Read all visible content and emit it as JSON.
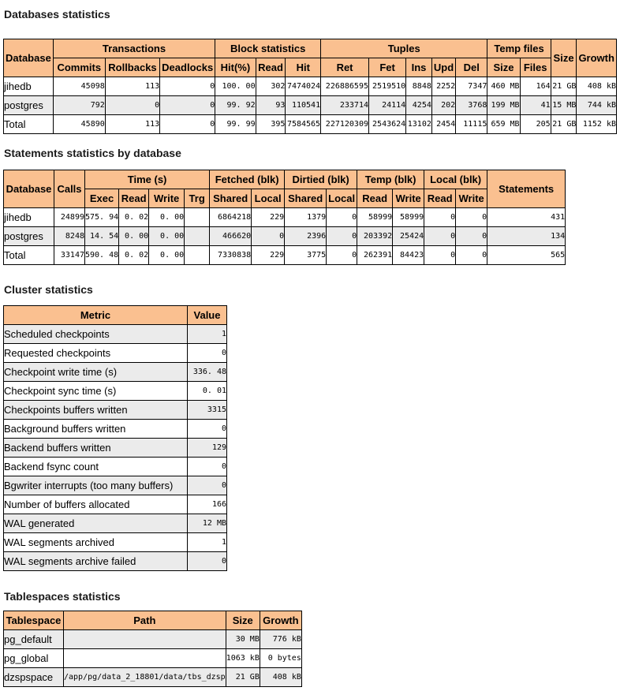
{
  "colors": {
    "header_bg": "#FAC090",
    "row_alt_bg": "#EBEBEB",
    "border": "#000000"
  },
  "sections": {
    "databases": {
      "title": "Databases statistics",
      "header": {
        "database": "Database",
        "transactions": "Transactions",
        "commits": "Commits",
        "rollbacks": "Rollbacks",
        "deadlocks": "Deadlocks",
        "block_statistics": "Block statistics",
        "hit_pct": "Hit(%)",
        "read": "Read",
        "hit": "Hit",
        "tuples": "Tuples",
        "ret": "Ret",
        "fet": "Fet",
        "ins": "Ins",
        "upd": "Upd",
        "del": "Del",
        "temp_files": "Temp files",
        "temp_size": "Size",
        "temp_count": "Files",
        "size": "Size",
        "growth": "Growth"
      },
      "rows": [
        [
          "jihedb",
          "45098",
          "113",
          "0",
          "100. 00",
          "302",
          "7474024",
          "226886595",
          "2519510",
          "8848",
          "2252",
          "7347",
          "460 MB",
          "164",
          "21 GB",
          "408 kB"
        ],
        [
          "postgres",
          "792",
          "0",
          "0",
          "99. 92",
          "93",
          "110541",
          "233714",
          "24114",
          "4254",
          "202",
          "3768",
          "199 MB",
          "41",
          "15 MB",
          "744 kB"
        ],
        [
          "Total",
          "45890",
          "113",
          "0",
          "99. 99",
          "395",
          "7584565",
          "227120309",
          "2543624",
          "13102",
          "2454",
          "11115",
          "659 MB",
          "205",
          "21 GB",
          "1152 kB"
        ]
      ]
    },
    "statements": {
      "title": "Statements statistics by database",
      "header": {
        "database": "Database",
        "calls": "Calls",
        "time_s": "Time (s)",
        "exec": "Exec",
        "read": "Read",
        "write": "Write",
        "trg": "Trg",
        "fetched_blk": "Fetched (blk)",
        "fetched_shared": "Shared",
        "fetched_local": "Local",
        "dirtied_blk": "Dirtied (blk)",
        "dirtied_shared": "Shared",
        "dirtied_local": "Local",
        "temp_blk": "Temp (blk)",
        "temp_read": "Read",
        "temp_write": "Write",
        "local_blk": "Local (blk)",
        "local_read": "Read",
        "local_write": "Write",
        "statements": "Statements"
      },
      "rows": [
        [
          "jihedb",
          "24899",
          "575. 94",
          "0. 02",
          "0. 00",
          "",
          "6864218",
          "229",
          "1379",
          "0",
          "58999",
          "58999",
          "0",
          "0",
          "431"
        ],
        [
          "postgres",
          "8248",
          "14. 54",
          "0. 00",
          "0. 00",
          "",
          "466620",
          "0",
          "2396",
          "0",
          "203392",
          "25424",
          "0",
          "0",
          "134"
        ],
        [
          "Total",
          "33147",
          "590. 48",
          "0. 02",
          "0. 00",
          "",
          "7330838",
          "229",
          "3775",
          "0",
          "262391",
          "84423",
          "0",
          "0",
          "565"
        ]
      ]
    },
    "cluster": {
      "title": "Cluster statistics",
      "header": {
        "metric": "Metric",
        "value": "Value"
      },
      "rows": [
        [
          "Scheduled checkpoints",
          "1"
        ],
        [
          "Requested checkpoints",
          "0"
        ],
        [
          "Checkpoint write time (s)",
          "336. 48"
        ],
        [
          "Checkpoint sync time (s)",
          "0. 01"
        ],
        [
          "Checkpoints buffers written",
          "3315"
        ],
        [
          "Background buffers written",
          "0"
        ],
        [
          "Backend buffers written",
          "129"
        ],
        [
          "Backend fsync count",
          "0"
        ],
        [
          "Bgwriter interrupts (too many buffers)",
          "0"
        ],
        [
          "Number of buffers allocated",
          "166"
        ],
        [
          "WAL generated",
          "12 MB"
        ],
        [
          "WAL segments archived",
          "1"
        ],
        [
          "WAL segments archive failed",
          "0"
        ]
      ]
    },
    "tablespaces": {
      "title": "Tablespaces statistics",
      "header": {
        "tablespace": "Tablespace",
        "path": "Path",
        "size": "Size",
        "growth": "Growth"
      },
      "rows": [
        [
          "pg_default",
          "",
          "30 MB",
          "776 kB"
        ],
        [
          "pg_global",
          "",
          "1063 kB",
          "0 bytes"
        ],
        [
          "dzspspace",
          "/app/pg/data_2_18801/data/tbs_dzsp",
          "21 GB",
          "408 kB"
        ]
      ]
    }
  }
}
